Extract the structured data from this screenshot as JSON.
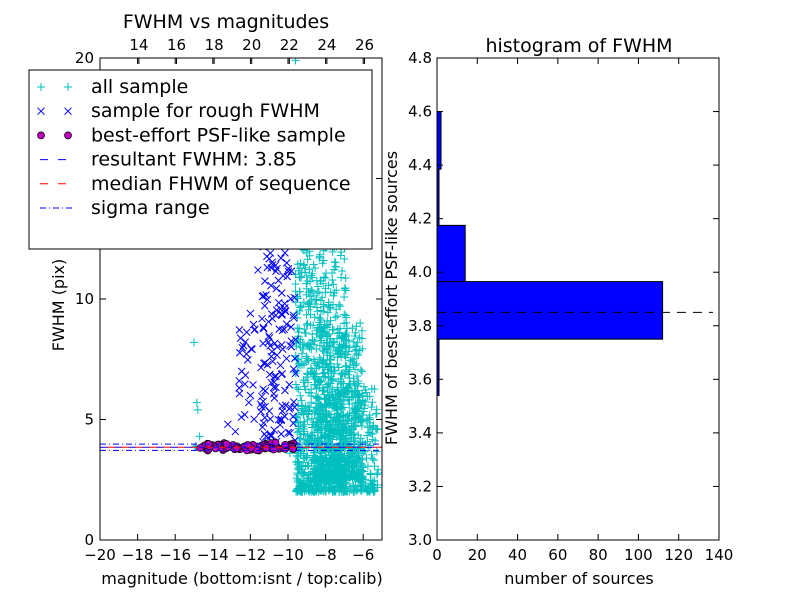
{
  "chart_data": [
    {
      "type": "scatter",
      "title": "FWHM vs magnitudes",
      "xlabel": "magnitude (bottom:isnt / top:calib)",
      "ylabel": "FWHM (pix)",
      "xlim": [
        -20,
        -5
      ],
      "ylim": [
        0,
        20
      ],
      "x_ticks": [
        "−20",
        "−18",
        "−16",
        "−14",
        "−12",
        "−10",
        "−8",
        "−6"
      ],
      "x_tick_values": [
        -20,
        -18,
        -16,
        -14,
        -12,
        -10,
        -8,
        -6
      ],
      "y_ticks": [
        "0",
        "5",
        "10",
        "15",
        "20"
      ],
      "y_tick_values": [
        0,
        5,
        10,
        15,
        20
      ],
      "top_ticks": [
        "14",
        "16",
        "18",
        "20",
        "22",
        "24",
        "26"
      ],
      "top_tick_values_isnt": [
        -17.93,
        -15.93,
        -13.93,
        -11.93,
        -9.93,
        -7.93,
        -5.93
      ],
      "legend": [
        {
          "label": "all sample",
          "marker": "plus",
          "color": "#00bfbf"
        },
        {
          "label": "sample for rough FWHM",
          "marker": "x",
          "color": "#0000ff"
        },
        {
          "label": "best-effort PSF-like sample",
          "marker": "circle",
          "color": "#bf00bf"
        },
        {
          "label": "resultant FWHM: 3.85",
          "marker": "dashed",
          "color": "#0000ff"
        },
        {
          "label": "median FHWM of sequence",
          "marker": "dashed",
          "color": "#ff0000"
        },
        {
          "label": "sigma range",
          "marker": "dashdot",
          "color": "#0000ff"
        }
      ],
      "lines": {
        "resultant_fwhm": 3.85,
        "median_fwhm": 3.85,
        "sigma_range": [
          3.72,
          3.98
        ]
      },
      "series": [
        {
          "name": "all sample",
          "cloud": [
            {
              "x": [
                -9.6,
                -6.9
              ],
              "y": [
                2.0,
                14.5
              ],
              "n": 900
            },
            {
              "x": [
                -8.7,
                -6.0
              ],
              "y": [
                2.5,
                9.0
              ],
              "n": 600
            },
            {
              "x": [
                -7.4,
                -5.2
              ],
              "y": [
                2.0,
                6.5
              ],
              "n": 250
            }
          ],
          "points": [
            [
              -15.0,
              8.2
            ],
            [
              -14.85,
              5.7
            ],
            [
              -14.8,
              5.4
            ],
            [
              -14.7,
              4.3
            ],
            [
              -14.9,
              3.9
            ],
            [
              -14.95,
              3.85
            ],
            [
              -9.9,
              3.6
            ],
            [
              -9.6,
              19.9
            ],
            [
              -8.3,
              13.0
            ],
            [
              -8.1,
              12.0
            ]
          ]
        },
        {
          "name": "sample for rough FWHM",
          "cloud": [
            {
              "x": [
                -11.4,
                -9.6
              ],
              "y": [
                4.0,
                15.5
              ],
              "n": 170
            },
            {
              "x": [
                -12.6,
                -11.2
              ],
              "y": [
                4.2,
                9.0
              ],
              "n": 35
            }
          ],
          "points": [
            [
              -12.0,
              9.4
            ],
            [
              -11.6,
              11.2
            ],
            [
              -11.1,
              12.3
            ],
            [
              -10.7,
              13.5
            ],
            [
              -12.8,
              4.5
            ],
            [
              -13.2,
              4.8
            ],
            [
              -12.3,
              5.2
            ]
          ]
        },
        {
          "name": "best-effort PSF-like sample",
          "cloud": [
            {
              "x": [
                -14.8,
                -9.7
              ],
              "y": [
                3.7,
                4.05
              ],
              "n": 75
            }
          ],
          "points": []
        }
      ]
    },
    {
      "type": "bar",
      "orientation": "horizontal",
      "title": "histogram of FWHM",
      "xlabel": "number of sources",
      "ylabel": "FWHM of best-effort PSF-like sources",
      "xlim": [
        0,
        140
      ],
      "ylim": [
        3.0,
        4.8
      ],
      "x_ticks": [
        "0",
        "20",
        "40",
        "60",
        "80",
        "100",
        "120",
        "140"
      ],
      "x_tick_values": [
        0,
        20,
        40,
        60,
        80,
        100,
        120,
        140
      ],
      "y_ticks": [
        "3.0",
        "3.2",
        "3.4",
        "3.6",
        "3.8",
        "4.0",
        "4.2",
        "4.4",
        "4.6",
        "4.8"
      ],
      "y_tick_values": [
        3.0,
        3.2,
        3.4,
        3.6,
        3.8,
        4.0,
        4.2,
        4.4,
        4.6,
        4.8
      ],
      "bins": [
        {
          "y0": 3.54,
          "y1": 3.75,
          "count": 1
        },
        {
          "y0": 3.75,
          "y1": 3.965,
          "count": 112
        },
        {
          "y0": 3.965,
          "y1": 4.175,
          "count": 14
        },
        {
          "y0": 4.175,
          "y1": 4.385,
          "count": 1
        },
        {
          "y0": 4.385,
          "y1": 4.6,
          "count": 2
        }
      ],
      "bar_color": "#0000ff",
      "reference_line": {
        "value": 3.85,
        "style": "dashed",
        "color": "#000000",
        "x_extent": [
          0,
          137
        ]
      }
    }
  ]
}
